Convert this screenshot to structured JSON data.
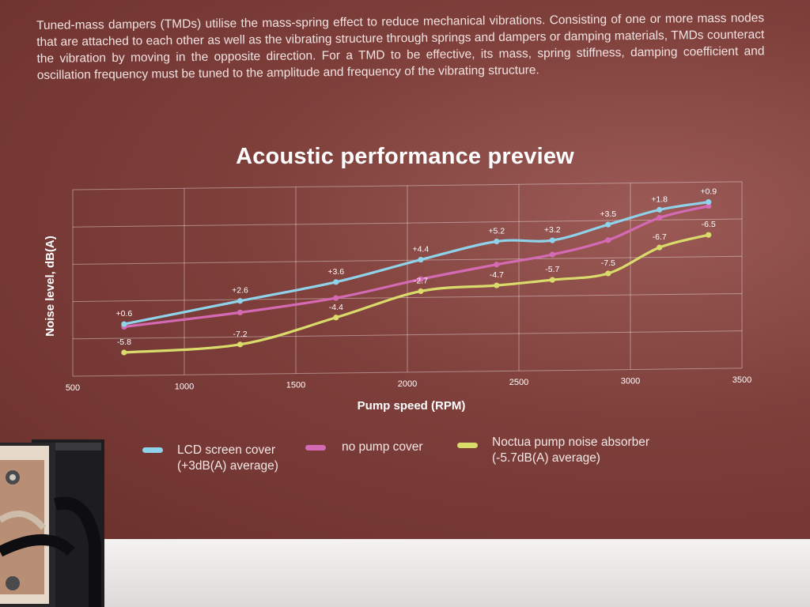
{
  "intro_text": "Tuned-mass dampers (TMDs) utilise the mass-spring effect to reduce mechanical vibrations. Consisting of one or more mass nodes that are attached to each other as well as the vibrating structure through springs and dampers or damping materials, TMDs counteract the vibration by moving in the opposite direction. For a TMD to be effective, its mass, spring stiffness, damping coefficient and oscillation frequency must be tuned to the amplitude and frequency of the vibrating structure.",
  "chart_data": {
    "type": "line",
    "title": "Acoustic performance preview",
    "xlabel": "Pump speed (RPM)",
    "ylabel": "Noise level, dB(A)",
    "xlim": [
      500,
      3500
    ],
    "x_ticks": [
      "500",
      "1000",
      "1500",
      "2000",
      "2500",
      "3000",
      "3500"
    ],
    "grid": true,
    "legend_placement": "bottom",
    "x": [
      730,
      1250,
      1680,
      2060,
      2400,
      2650,
      2900,
      3130,
      3350
    ],
    "series": [
      {
        "name": "LCD screen cover",
        "note": "(+3dB(A) average)",
        "color": "#8fd3ea",
        "values": [
          25.6,
          30.5,
          34.5,
          39.3,
          43.2,
          43.3,
          46.7,
          49.9,
          51.5
        ],
        "labels": [
          "+0.6",
          "+2.6",
          "+3.6",
          "+4.4",
          "+5.2",
          "+3.2",
          "+3.5",
          "+1.8",
          "+0.9"
        ]
      },
      {
        "name": "no pump cover",
        "note": "",
        "color": "#d56ab4",
        "values": [
          25.0,
          27.9,
          30.9,
          34.9,
          38.0,
          40.1,
          43.2,
          48.1,
          50.6
        ]
      },
      {
        "name": "Noctua pump noise absorber",
        "note": "(-5.7dB(A) average)",
        "color": "#d9dc6b",
        "values": [
          19.2,
          20.7,
          26.5,
          32.2,
          33.3,
          34.4,
          35.7,
          41.4,
          44.1
        ],
        "labels": [
          "-5.8",
          "-7.2",
          "-4.4",
          "-2.7",
          "-4.7",
          "-5.7",
          "-7.5",
          "-6.7",
          "-6.5"
        ]
      }
    ]
  }
}
